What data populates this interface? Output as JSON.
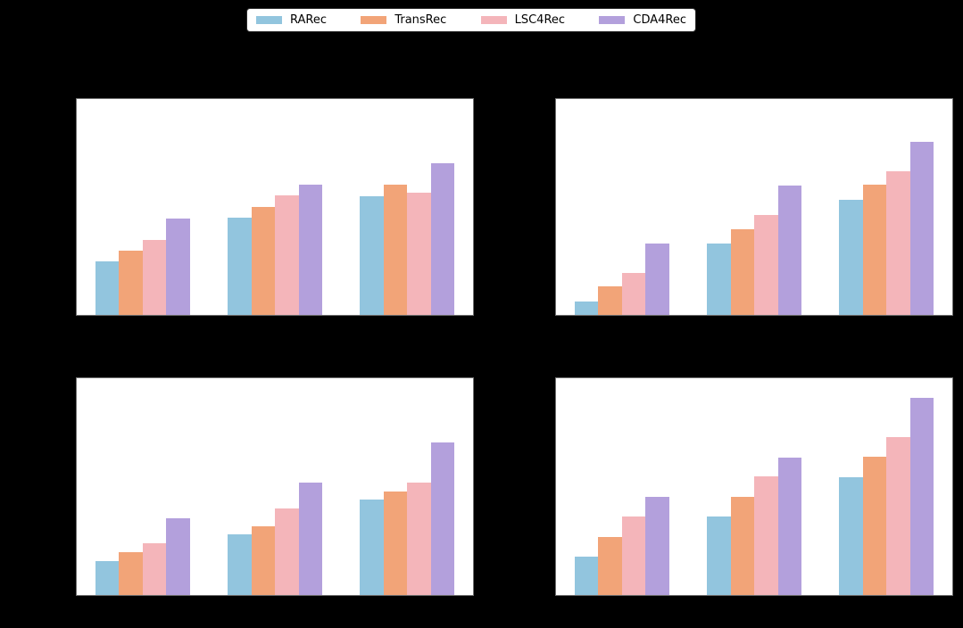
{
  "figure": {
    "background_color": "#000000",
    "panel_background": "#ffffff",
    "text_visible": false
  },
  "legend": {
    "entries": [
      {
        "label": "RARec",
        "color": "#92C5DE",
        "icon": "legend-swatch"
      },
      {
        "label": "TransRec",
        "color": "#F2A478",
        "icon": "legend-swatch"
      },
      {
        "label": "LSC4Rec",
        "color": "#F4B5BA",
        "icon": "legend-swatch"
      },
      {
        "label": "CDA4Rec",
        "color": "#B3A0DC",
        "icon": "legend-swatch"
      }
    ]
  },
  "chart_data": [
    {
      "position": "top-left",
      "type": "bar",
      "title": "",
      "xlabel": "",
      "ylabel": "",
      "categories": [
        "",
        "",
        ""
      ],
      "ylim": [
        0,
        1
      ],
      "grid": false,
      "legend_position": "top-outside-shared",
      "series": [
        {
          "name": "RARec",
          "color": "#92C5DE",
          "values": [
            0.247,
            0.452,
            0.551
          ]
        },
        {
          "name": "TransRec",
          "color": "#F2A478",
          "values": [
            0.299,
            0.499,
            0.602
          ]
        },
        {
          "name": "LSC4Rec",
          "color": "#F4B5BA",
          "values": [
            0.347,
            0.552,
            0.568
          ]
        },
        {
          "name": "CDA4Rec",
          "color": "#B3A0DC",
          "values": [
            0.448,
            0.603,
            0.702
          ]
        }
      ]
    },
    {
      "position": "top-right",
      "type": "bar",
      "title": "",
      "xlabel": "",
      "ylabel": "",
      "categories": [
        "",
        "",
        ""
      ],
      "ylim": [
        0,
        1
      ],
      "grid": false,
      "legend_position": "top-outside-shared",
      "series": [
        {
          "name": "RARec",
          "color": "#92C5DE",
          "values": [
            0.062,
            0.331,
            0.534
          ]
        },
        {
          "name": "TransRec",
          "color": "#F2A478",
          "values": [
            0.132,
            0.397,
            0.603
          ]
        },
        {
          "name": "LSC4Rec",
          "color": "#F4B5BA",
          "values": [
            0.196,
            0.463,
            0.667
          ]
        },
        {
          "name": "CDA4Rec",
          "color": "#B3A0DC",
          "values": [
            0.33,
            0.6,
            0.801
          ]
        }
      ]
    },
    {
      "position": "bottom-left",
      "type": "bar",
      "title": "",
      "xlabel": "",
      "ylabel": "",
      "categories": [
        "",
        "",
        ""
      ],
      "ylim": [
        0,
        1
      ],
      "grid": false,
      "legend_position": "top-outside-shared",
      "series": [
        {
          "name": "RARec",
          "color": "#92C5DE",
          "values": [
            0.155,
            0.279,
            0.44
          ]
        },
        {
          "name": "TransRec",
          "color": "#F2A478",
          "values": [
            0.196,
            0.318,
            0.478
          ]
        },
        {
          "name": "LSC4Rec",
          "color": "#F4B5BA",
          "values": [
            0.237,
            0.399,
            0.519
          ]
        },
        {
          "name": "CDA4Rec",
          "color": "#B3A0DC",
          "values": [
            0.356,
            0.519,
            0.702
          ]
        }
      ]
    },
    {
      "position": "bottom-right",
      "type": "bar",
      "title": "",
      "xlabel": "",
      "ylabel": "",
      "categories": [
        "",
        "",
        ""
      ],
      "ylim": [
        0,
        1
      ],
      "grid": false,
      "legend_position": "top-outside-shared",
      "series": [
        {
          "name": "RARec",
          "color": "#92C5DE",
          "values": [
            0.178,
            0.362,
            0.543
          ]
        },
        {
          "name": "TransRec",
          "color": "#F2A478",
          "values": [
            0.269,
            0.451,
            0.638
          ]
        },
        {
          "name": "LSC4Rec",
          "color": "#F4B5BA",
          "values": [
            0.362,
            0.547,
            0.728
          ]
        },
        {
          "name": "CDA4Rec",
          "color": "#B3A0DC",
          "values": [
            0.451,
            0.634,
            0.909
          ]
        }
      ]
    }
  ]
}
